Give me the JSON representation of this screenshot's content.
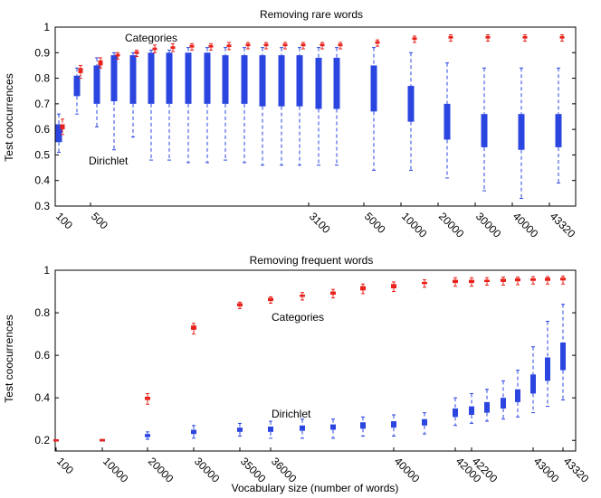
{
  "chart_data": [
    {
      "type": "box",
      "title": "Removing rare words",
      "xlabel": "",
      "ylabel": "Test coocurrences",
      "ylim": [
        0.3,
        1.0
      ],
      "yticks": [
        "0.3",
        "0.4",
        "0.5",
        "0.6",
        "0.7",
        "0.8",
        "0.9",
        "1"
      ],
      "xtick_labels": [
        "100",
        "500",
        "3100",
        "5000",
        "10000",
        "20000",
        "30000",
        "40000",
        "43320"
      ],
      "annotations": [
        "Categories",
        "Dirichlet"
      ],
      "colors": {
        "categories": "#e8211a",
        "dirichlet": "#2b45e0"
      },
      "categories_series": [
        {
          "q1": 0.6,
          "q3": 0.62,
          "wlo": 0.58,
          "whi": 0.64
        },
        {
          "q1": 0.82,
          "q3": 0.84,
          "wlo": 0.8,
          "whi": 0.85
        },
        {
          "q1": 0.85,
          "q3": 0.87,
          "wlo": 0.84,
          "whi": 0.88
        },
        {
          "q1": 0.885,
          "q3": 0.895,
          "wlo": 0.875,
          "whi": 0.9
        },
        {
          "q1": 0.895,
          "q3": 0.905,
          "wlo": 0.885,
          "whi": 0.91
        },
        {
          "q1": 0.91,
          "q3": 0.92,
          "wlo": 0.9,
          "whi": 0.93
        },
        {
          "q1": 0.915,
          "q3": 0.925,
          "wlo": 0.905,
          "whi": 0.935
        },
        {
          "q1": 0.92,
          "q3": 0.93,
          "wlo": 0.91,
          "whi": 0.935
        },
        {
          "q1": 0.92,
          "q3": 0.93,
          "wlo": 0.91,
          "whi": 0.935
        },
        {
          "q1": 0.922,
          "q3": 0.932,
          "wlo": 0.912,
          "whi": 0.94
        },
        {
          "q1": 0.925,
          "q3": 0.935,
          "wlo": 0.915,
          "whi": 0.94
        },
        {
          "q1": 0.925,
          "q3": 0.935,
          "wlo": 0.915,
          "whi": 0.94
        },
        {
          "q1": 0.925,
          "q3": 0.935,
          "wlo": 0.915,
          "whi": 0.94
        },
        {
          "q1": 0.925,
          "q3": 0.935,
          "wlo": 0.915,
          "whi": 0.94
        },
        {
          "q1": 0.925,
          "q3": 0.935,
          "wlo": 0.915,
          "whi": 0.94
        },
        {
          "q1": 0.925,
          "q3": 0.935,
          "wlo": 0.915,
          "whi": 0.94
        },
        {
          "q1": 0.935,
          "q3": 0.945,
          "wlo": 0.925,
          "whi": 0.95
        },
        {
          "q1": 0.95,
          "q3": 0.96,
          "wlo": 0.94,
          "whi": 0.965
        },
        {
          "q1": 0.955,
          "q3": 0.965,
          "wlo": 0.945,
          "whi": 0.97
        },
        {
          "q1": 0.955,
          "q3": 0.965,
          "wlo": 0.945,
          "whi": 0.97
        },
        {
          "q1": 0.955,
          "q3": 0.965,
          "wlo": 0.945,
          "whi": 0.97
        },
        {
          "q1": 0.955,
          "q3": 0.965,
          "wlo": 0.945,
          "whi": 0.97
        }
      ],
      "dirichlet_series": [
        {
          "q1": 0.55,
          "q3": 0.62,
          "wlo": 0.51,
          "whi": 0.66
        },
        {
          "q1": 0.73,
          "q3": 0.81,
          "wlo": 0.66,
          "whi": 0.84
        },
        {
          "q1": 0.7,
          "q3": 0.85,
          "wlo": 0.61,
          "whi": 0.88
        },
        {
          "q1": 0.71,
          "q3": 0.89,
          "wlo": 0.52,
          "whi": 0.9
        },
        {
          "q1": 0.7,
          "q3": 0.89,
          "wlo": 0.57,
          "whi": 0.9
        },
        {
          "q1": 0.7,
          "q3": 0.9,
          "wlo": 0.48,
          "whi": 0.91
        },
        {
          "q1": 0.7,
          "q3": 0.9,
          "wlo": 0.48,
          "whi": 0.91
        },
        {
          "q1": 0.7,
          "q3": 0.9,
          "wlo": 0.47,
          "whi": 0.92
        },
        {
          "q1": 0.7,
          "q3": 0.9,
          "wlo": 0.47,
          "whi": 0.92
        },
        {
          "q1": 0.7,
          "q3": 0.89,
          "wlo": 0.48,
          "whi": 0.92
        },
        {
          "q1": 0.7,
          "q3": 0.89,
          "wlo": 0.47,
          "whi": 0.92
        },
        {
          "q1": 0.69,
          "q3": 0.89,
          "wlo": 0.46,
          "whi": 0.92
        },
        {
          "q1": 0.69,
          "q3": 0.89,
          "wlo": 0.46,
          "whi": 0.92
        },
        {
          "q1": 0.69,
          "q3": 0.89,
          "wlo": 0.46,
          "whi": 0.92
        },
        {
          "q1": 0.68,
          "q3": 0.88,
          "wlo": 0.46,
          "whi": 0.92
        },
        {
          "q1": 0.68,
          "q3": 0.88,
          "wlo": 0.46,
          "whi": 0.92
        },
        {
          "q1": 0.67,
          "q3": 0.85,
          "wlo": 0.44,
          "whi": 0.92
        },
        {
          "q1": 0.63,
          "q3": 0.77,
          "wlo": 0.44,
          "whi": 0.9
        },
        {
          "q1": 0.56,
          "q3": 0.7,
          "wlo": 0.41,
          "whi": 0.86
        },
        {
          "q1": 0.53,
          "q3": 0.66,
          "wlo": 0.36,
          "whi": 0.84
        },
        {
          "q1": 0.52,
          "q3": 0.66,
          "wlo": 0.33,
          "whi": 0.84
        },
        {
          "q1": 0.53,
          "q3": 0.66,
          "wlo": 0.39,
          "whi": 0.84
        }
      ]
    },
    {
      "type": "box",
      "title": "Removing frequent words",
      "xlabel": "Vocabulary size (number of words)",
      "ylabel": "Test coocurrences",
      "ylim": [
        0.15,
        1.0
      ],
      "yticks": [
        "0.2",
        "0.4",
        "0.6",
        "0.8",
        "1"
      ],
      "xtick_labels": [
        "100",
        "10000",
        "20000",
        "30000",
        "35000",
        "36000",
        "40000",
        "42000",
        "42200",
        "43000",
        "43320"
      ],
      "annotations": [
        "Categories",
        "Dirichlet"
      ],
      "colors": {
        "categories": "#e8211a",
        "dirichlet": "#2b45e0"
      },
      "categories_series": [
        {
          "q1": 0.198,
          "q3": 0.202,
          "wlo": 0.198,
          "whi": 0.202
        },
        {
          "q1": 0.199,
          "q3": 0.203,
          "wlo": 0.198,
          "whi": 0.204
        },
        {
          "q1": 0.39,
          "q3": 0.405,
          "wlo": 0.37,
          "whi": 0.42
        },
        {
          "q1": 0.72,
          "q3": 0.74,
          "wlo": 0.7,
          "whi": 0.75
        },
        {
          "q1": 0.83,
          "q3": 0.845,
          "wlo": 0.82,
          "whi": 0.85
        },
        {
          "q1": 0.855,
          "q3": 0.87,
          "wlo": 0.845,
          "whi": 0.875
        },
        {
          "q1": 0.875,
          "q3": 0.885,
          "wlo": 0.86,
          "whi": 0.895
        },
        {
          "q1": 0.885,
          "q3": 0.9,
          "wlo": 0.87,
          "whi": 0.91
        },
        {
          "q1": 0.905,
          "q3": 0.925,
          "wlo": 0.89,
          "whi": 0.935
        },
        {
          "q1": 0.915,
          "q3": 0.935,
          "wlo": 0.9,
          "whi": 0.945
        },
        {
          "q1": 0.935,
          "q3": 0.945,
          "wlo": 0.92,
          "whi": 0.955
        },
        {
          "q1": 0.94,
          "q3": 0.955,
          "wlo": 0.925,
          "whi": 0.965
        },
        {
          "q1": 0.94,
          "q3": 0.955,
          "wlo": 0.925,
          "whi": 0.965
        },
        {
          "q1": 0.945,
          "q3": 0.955,
          "wlo": 0.93,
          "whi": 0.965
        },
        {
          "q1": 0.945,
          "q3": 0.96,
          "wlo": 0.93,
          "whi": 0.968
        },
        {
          "q1": 0.948,
          "q3": 0.962,
          "wlo": 0.932,
          "whi": 0.968
        },
        {
          "q1": 0.95,
          "q3": 0.962,
          "wlo": 0.935,
          "whi": 0.97
        },
        {
          "q1": 0.95,
          "q3": 0.965,
          "wlo": 0.935,
          "whi": 0.97
        },
        {
          "q1": 0.952,
          "q3": 0.965,
          "wlo": 0.935,
          "whi": 0.972
        }
      ],
      "dirichlet_series": [
        {
          "q1": 0.198,
          "q3": 0.202,
          "wlo": 0.198,
          "whi": 0.202
        },
        {
          "q1": 0.198,
          "q3": 0.202,
          "wlo": 0.197,
          "whi": 0.203
        },
        {
          "q1": 0.215,
          "q3": 0.23,
          "wlo": 0.205,
          "whi": 0.24
        },
        {
          "q1": 0.23,
          "q3": 0.25,
          "wlo": 0.21,
          "whi": 0.27
        },
        {
          "q1": 0.24,
          "q3": 0.26,
          "wlo": 0.22,
          "whi": 0.28
        },
        {
          "q1": 0.24,
          "q3": 0.265,
          "wlo": 0.21,
          "whi": 0.29
        },
        {
          "q1": 0.245,
          "q3": 0.27,
          "wlo": 0.21,
          "whi": 0.3
        },
        {
          "q1": 0.25,
          "q3": 0.275,
          "wlo": 0.21,
          "whi": 0.3
        },
        {
          "q1": 0.255,
          "q3": 0.285,
          "wlo": 0.22,
          "whi": 0.31
        },
        {
          "q1": 0.26,
          "q3": 0.29,
          "wlo": 0.22,
          "whi": 0.32
        },
        {
          "q1": 0.27,
          "q3": 0.3,
          "wlo": 0.23,
          "whi": 0.33
        },
        {
          "q1": 0.31,
          "q3": 0.35,
          "wlo": 0.27,
          "whi": 0.4
        },
        {
          "q1": 0.32,
          "q3": 0.36,
          "wlo": 0.28,
          "whi": 0.42
        },
        {
          "q1": 0.33,
          "q3": 0.38,
          "wlo": 0.29,
          "whi": 0.44
        },
        {
          "q1": 0.35,
          "q3": 0.4,
          "wlo": 0.3,
          "whi": 0.48
        },
        {
          "q1": 0.38,
          "q3": 0.44,
          "wlo": 0.31,
          "whi": 0.53
        },
        {
          "q1": 0.42,
          "q3": 0.51,
          "wlo": 0.33,
          "whi": 0.64
        },
        {
          "q1": 0.48,
          "q3": 0.59,
          "wlo": 0.36,
          "whi": 0.76
        },
        {
          "q1": 0.53,
          "q3": 0.66,
          "wlo": 0.39,
          "whi": 0.84
        }
      ]
    }
  ]
}
